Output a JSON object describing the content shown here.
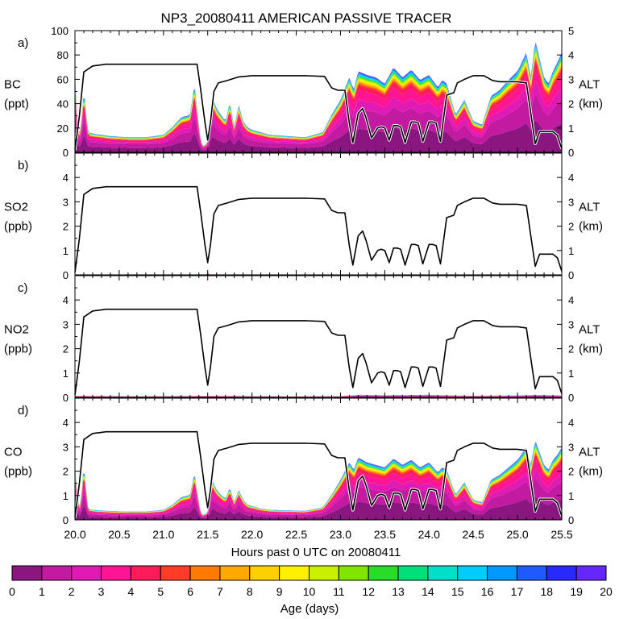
{
  "chart_data": {
    "type": "area",
    "title": "NP3_20080411 AMERICAN PASSIVE TRACER",
    "xlabel": "Hours past 0 UTC on 20080411",
    "x_ticks": [
      "20.0",
      "20.5",
      "21.0",
      "21.5",
      "22.0",
      "22.5",
      "23.0",
      "23.5",
      "24.0",
      "24.5",
      "25.0",
      "25.5"
    ],
    "xlim": [
      20.0,
      25.5
    ],
    "right_axis": {
      "label": "ALT",
      "unit": "(km)",
      "ylim": [
        0,
        5
      ],
      "ticks": [
        "0",
        "1",
        "2",
        "3",
        "4",
        "5"
      ]
    },
    "altitude_km": {
      "x": [
        20.0,
        20.05,
        20.1,
        20.2,
        20.35,
        20.6,
        21.0,
        21.38,
        21.42,
        21.47,
        21.5,
        21.53,
        21.57,
        21.62,
        21.72,
        21.85,
        22.0,
        22.3,
        22.6,
        22.82,
        22.9,
        22.97,
        23.05,
        23.1,
        23.14,
        23.2,
        23.25,
        23.29,
        23.35,
        23.42,
        23.46,
        23.5,
        23.55,
        23.6,
        23.64,
        23.68,
        23.73,
        23.8,
        23.84,
        23.88,
        23.93,
        24.0,
        24.04,
        24.08,
        24.13,
        24.2,
        24.28,
        24.32,
        24.4,
        24.5,
        24.62,
        24.72,
        24.8,
        25.0,
        25.1,
        25.15,
        25.2,
        25.25,
        25.3,
        25.4,
        25.45,
        25.5
      ],
      "y": [
        0.1,
        1.5,
        3.3,
        3.55,
        3.62,
        3.62,
        3.62,
        3.62,
        2.6,
        1.2,
        0.5,
        1.2,
        2.5,
        2.85,
        2.95,
        3.1,
        3.15,
        3.15,
        3.15,
        3.12,
        2.65,
        2.55,
        2.55,
        1.2,
        0.4,
        1.6,
        1.8,
        1.4,
        0.6,
        1.0,
        1.05,
        1.0,
        0.5,
        1.1,
        1.1,
        1.05,
        0.4,
        1.25,
        1.25,
        1.2,
        0.45,
        1.25,
        1.25,
        1.2,
        0.45,
        2.35,
        2.45,
        2.85,
        3.0,
        3.15,
        3.15,
        2.95,
        2.9,
        2.9,
        2.85,
        1.6,
        0.35,
        0.85,
        0.85,
        0.85,
        0.7,
        0.15
      ]
    },
    "age_bins_days": [
      "0-1",
      "1-2",
      "2-3",
      "3-4",
      "4-5",
      "5-6",
      "6-7",
      "7-8",
      "8-9",
      "9-10",
      "10-11",
      "11-12",
      "12-13",
      "13-14",
      "14-15",
      "15-16",
      "16-17",
      "17-18",
      "18-19",
      "19-20"
    ],
    "colorbar": {
      "label": "Age (days)",
      "ticks": [
        "0",
        "1",
        "2",
        "3",
        "4",
        "5",
        "6",
        "7",
        "8",
        "9",
        "10",
        "11",
        "12",
        "13",
        "14",
        "15",
        "16",
        "17",
        "18",
        "19",
        "20"
      ],
      "colors": [
        "#8a1680",
        "#c21aa0",
        "#e01ab4",
        "#ff1493",
        "#ff1a5c",
        "#ff3c28",
        "#ff7a00",
        "#ffa800",
        "#ffd000",
        "#fff000",
        "#c8f000",
        "#80e600",
        "#28dc28",
        "#00e07a",
        "#00e0c8",
        "#00ccff",
        "#0099ff",
        "#1e5aff",
        "#2828ff",
        "#6428ff"
      ]
    },
    "panels": [
      {
        "letter": "a)",
        "species": "BC",
        "unit": "(ppt)",
        "ylim": [
          0,
          100
        ],
        "yticks": [
          "0",
          "20",
          "40",
          "60",
          "80",
          "100"
        ],
        "series_total": {
          "x": [
            20.0,
            20.03,
            20.06,
            20.1,
            20.15,
            20.2,
            20.4,
            20.6,
            20.8,
            21.0,
            21.1,
            21.2,
            21.3,
            21.35,
            21.38,
            21.42,
            21.45,
            21.5,
            21.55,
            21.6,
            21.65,
            21.7,
            21.75,
            21.8,
            21.85,
            21.9,
            21.95,
            22.0,
            22.1,
            22.2,
            22.4,
            22.6,
            22.8,
            22.9,
            23.0,
            23.1,
            23.15,
            23.2,
            23.3,
            23.4,
            23.5,
            23.6,
            23.7,
            23.8,
            23.9,
            24.0,
            24.1,
            24.15,
            24.2,
            24.3,
            24.4,
            24.5,
            24.6,
            24.7,
            24.8,
            24.9,
            25.0,
            25.1,
            25.15,
            25.2,
            25.25,
            25.3,
            25.35,
            25.4,
            25.45,
            25.5
          ],
          "y": [
            62,
            20,
            15,
            50,
            16,
            15,
            13,
            12,
            12,
            14,
            20,
            28,
            30,
            55,
            35,
            10,
            5,
            8,
            45,
            35,
            30,
            25,
            40,
            20,
            38,
            25,
            20,
            18,
            16,
            14,
            13,
            12,
            16,
            30,
            42,
            60,
            50,
            65,
            62,
            60,
            55,
            68,
            60,
            66,
            58,
            62,
            52,
            58,
            55,
            30,
            42,
            25,
            22,
            45,
            50,
            58,
            65,
            80,
            60,
            90,
            75,
            60,
            55,
            65,
            72,
            80
          ]
        },
        "age_fractions": [
          0.3,
          0.25,
          0.12,
          0.12,
          0.06,
          0.02,
          0.015,
          0.015,
          0.015,
          0.015,
          0.015,
          0.01,
          0.01,
          0.01,
          0.01,
          0.01,
          0.01,
          0.01,
          0.005,
          0.005
        ]
      },
      {
        "letter": "b)",
        "species": "SO2",
        "unit": "(ppb)",
        "ylim": [
          0,
          5
        ],
        "yticks": [
          "0",
          "1",
          "2",
          "3",
          "4",
          ""
        ],
        "series_total": {
          "x": [
            20.0,
            21.48,
            21.5,
            21.52,
            25.5
          ],
          "y": [
            0,
            0,
            0.1,
            0,
            0
          ]
        },
        "age_fractions": [
          0.3,
          0.25,
          0.12,
          0.12,
          0.06,
          0.02,
          0.015,
          0.015,
          0.015,
          0.015,
          0.015,
          0.01,
          0.01,
          0.01,
          0.01,
          0.01,
          0.01,
          0.01,
          0.005,
          0.005
        ]
      },
      {
        "letter": "c)",
        "species": "NO2",
        "unit": "(ppb)",
        "ylim": [
          0,
          5
        ],
        "yticks": [
          "0",
          "1",
          "2",
          "3",
          "4",
          ""
        ],
        "series_total": {
          "x": [
            20.0,
            20.5,
            21.0,
            21.5,
            22.0,
            22.5,
            23.0,
            23.2,
            23.5,
            24.0,
            24.5,
            25.0,
            25.2,
            25.5
          ],
          "y": [
            0.06,
            0.05,
            0.05,
            0.06,
            0.05,
            0.04,
            0.05,
            0.1,
            0.09,
            0.1,
            0.06,
            0.08,
            0.1,
            0.08
          ]
        },
        "age_fractions": [
          0.3,
          0.25,
          0.12,
          0.12,
          0.06,
          0.02,
          0.015,
          0.015,
          0.015,
          0.015,
          0.015,
          0.01,
          0.01,
          0.01,
          0.01,
          0.01,
          0.01,
          0.01,
          0.005,
          0.005
        ]
      },
      {
        "letter": "d)",
        "species": "CO",
        "unit": "(ppb)",
        "ylim": [
          0,
          5
        ],
        "yticks": [
          "0",
          "1",
          "2",
          "3",
          "4",
          ""
        ],
        "series_total": {
          "x": [
            20.0,
            20.03,
            20.06,
            20.1,
            20.15,
            20.2,
            20.4,
            20.6,
            20.8,
            21.0,
            21.1,
            21.2,
            21.3,
            21.35,
            21.38,
            21.42,
            21.45,
            21.5,
            21.55,
            21.6,
            21.65,
            21.7,
            21.75,
            21.8,
            21.85,
            21.9,
            21.95,
            22.0,
            22.1,
            22.2,
            22.4,
            22.6,
            22.8,
            22.9,
            23.0,
            23.1,
            23.15,
            23.2,
            23.3,
            23.4,
            23.5,
            23.6,
            23.7,
            23.8,
            23.9,
            24.0,
            24.1,
            24.15,
            24.2,
            24.3,
            24.4,
            24.5,
            24.6,
            24.7,
            24.8,
            24.9,
            25.0,
            25.1,
            25.15,
            25.2,
            25.25,
            25.3,
            25.35,
            25.4,
            25.45,
            25.5
          ],
          "y": [
            2.2,
            0.8,
            0.5,
            2.2,
            0.45,
            0.4,
            0.35,
            0.33,
            0.33,
            0.4,
            0.6,
            0.9,
            1.0,
            1.9,
            1.2,
            0.3,
            0.2,
            0.3,
            1.6,
            1.2,
            1.0,
            0.85,
            1.3,
            0.7,
            1.2,
            0.8,
            0.6,
            0.55,
            0.45,
            0.4,
            0.38,
            0.36,
            0.5,
            1.0,
            1.6,
            2.3,
            2.0,
            2.5,
            2.3,
            2.2,
            2.1,
            2.45,
            2.2,
            2.4,
            2.1,
            2.3,
            1.9,
            2.1,
            2.0,
            1.0,
            1.5,
            0.8,
            0.7,
            1.6,
            1.8,
            2.1,
            2.4,
            2.9,
            2.2,
            3.2,
            2.7,
            2.2,
            2.0,
            2.4,
            2.6,
            2.9
          ]
        },
        "age_fractions": [
          0.3,
          0.25,
          0.12,
          0.12,
          0.06,
          0.02,
          0.015,
          0.015,
          0.015,
          0.015,
          0.015,
          0.01,
          0.01,
          0.01,
          0.01,
          0.01,
          0.01,
          0.01,
          0.005,
          0.005
        ]
      }
    ]
  }
}
